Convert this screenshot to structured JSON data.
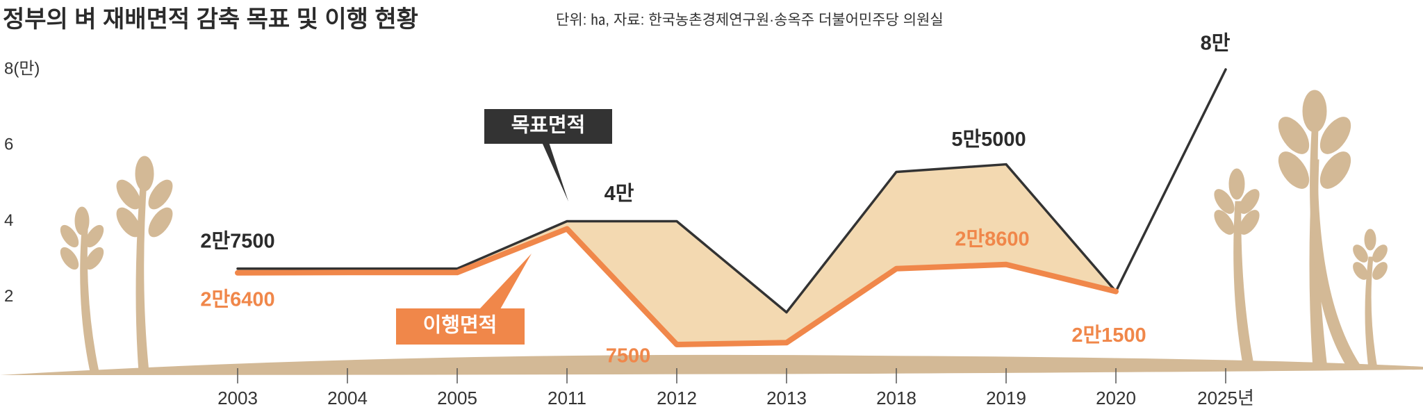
{
  "chart_data": {
    "type": "line",
    "title": "정부의 벼 재배면적 감축 목표 및 이행 현황",
    "subtitle": "단위: ㏊, 자료: 한국농촌경제연구원·송옥주 더불어민주당 의원실",
    "categories": [
      "2003",
      "2004",
      "2005",
      "2011",
      "2012",
      "2013",
      "2018",
      "2019",
      "2020",
      "2025년"
    ],
    "ylim": [
      0,
      8
    ],
    "yticks": [
      2,
      4,
      6,
      {
        "value": 8,
        "label": "8(만)"
      }
    ],
    "series": [
      {
        "name": "목표면적",
        "color": "#333333",
        "values": [
          2.75,
          2.75,
          2.75,
          4,
          4,
          1.6,
          5.3,
          5.5,
          2.15,
          8
        ],
        "value_labels": [
          "2만7500",
          null,
          null,
          "4만",
          null,
          null,
          null,
          "5만5000",
          null,
          "8만"
        ]
      },
      {
        "name": "이행면적",
        "color": "#f0874a",
        "values": [
          2.64,
          2.65,
          2.65,
          3.8,
          0.75,
          0.8,
          2.75,
          2.86,
          2.15,
          null
        ],
        "value_labels": [
          "2만6400",
          null,
          null,
          null,
          "7500",
          null,
          null,
          "2만8600",
          "2만1500",
          null
        ]
      }
    ]
  }
}
